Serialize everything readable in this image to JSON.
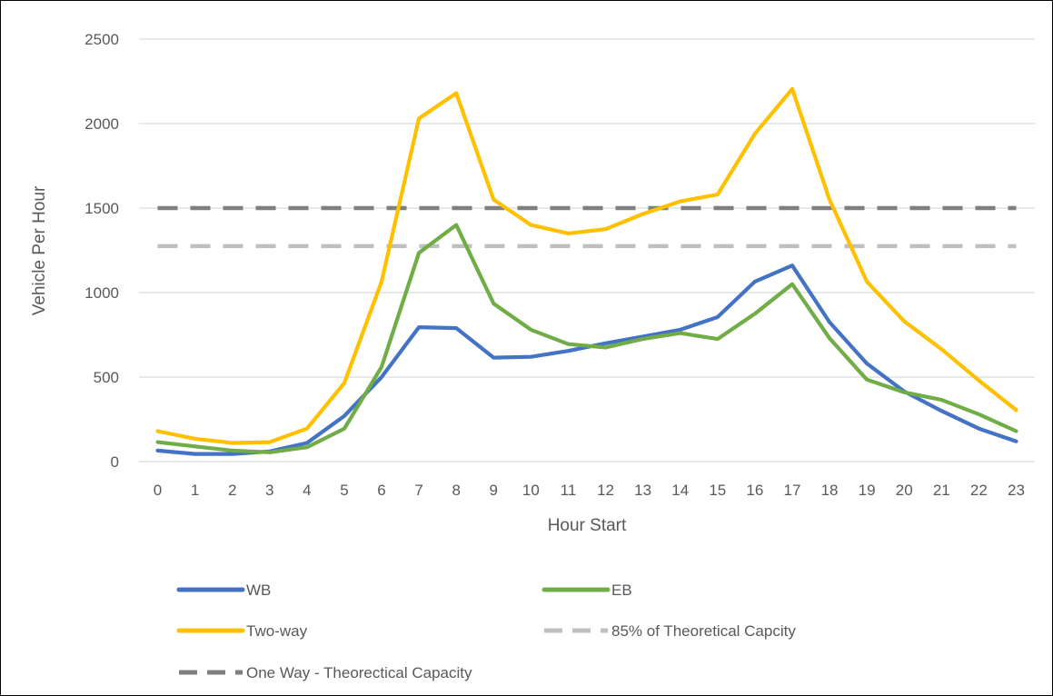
{
  "chart_data": {
    "type": "line",
    "title": "",
    "xlabel": "Hour Start",
    "ylabel": "Vehicle Per Hour",
    "x": [
      0,
      1,
      2,
      3,
      4,
      5,
      6,
      7,
      8,
      9,
      10,
      11,
      12,
      13,
      14,
      15,
      16,
      17,
      18,
      19,
      20,
      21,
      22,
      23
    ],
    "ylim": [
      0,
      2500
    ],
    "yticks": [
      0,
      500,
      1000,
      1500,
      2000,
      2500
    ],
    "grid": true,
    "legend_position": "bottom",
    "series": [
      {
        "name": "WB",
        "color": "#4472C4",
        "dash": "solid",
        "values": [
          65,
          45,
          45,
          60,
          110,
          270,
          500,
          795,
          790,
          615,
          620,
          655,
          700,
          740,
          780,
          855,
          1065,
          1160,
          825,
          580,
          415,
          300,
          195,
          120
        ]
      },
      {
        "name": "EB",
        "color": "#70AD47",
        "dash": "solid",
        "values": [
          115,
          90,
          65,
          55,
          85,
          195,
          560,
          1235,
          1400,
          935,
          780,
          695,
          675,
          725,
          760,
          725,
          875,
          1050,
          730,
          485,
          410,
          365,
          280,
          180
        ]
      },
      {
        "name": "Two-way",
        "color": "#FFC000",
        "dash": "solid",
        "values": [
          180,
          135,
          110,
          115,
          195,
          465,
          1065,
          2030,
          2180,
          1550,
          1400,
          1350,
          1375,
          1465,
          1540,
          1580,
          1940,
          2205,
          1550,
          1065,
          830,
          665,
          480,
          305
        ]
      },
      {
        "name": "85% of Theoretical Capcity",
        "color": "#BFBFBF",
        "dash": "dashed",
        "values": [
          1275,
          1275,
          1275,
          1275,
          1275,
          1275,
          1275,
          1275,
          1275,
          1275,
          1275,
          1275,
          1275,
          1275,
          1275,
          1275,
          1275,
          1275,
          1275,
          1275,
          1275,
          1275,
          1275,
          1275
        ]
      },
      {
        "name": "One Way - Theorectical Capacity",
        "color": "#7F7F7F",
        "dash": "dashed",
        "values": [
          1500,
          1500,
          1500,
          1500,
          1500,
          1500,
          1500,
          1500,
          1500,
          1500,
          1500,
          1500,
          1500,
          1500,
          1500,
          1500,
          1500,
          1500,
          1500,
          1500,
          1500,
          1500,
          1500,
          1500
        ]
      }
    ]
  }
}
